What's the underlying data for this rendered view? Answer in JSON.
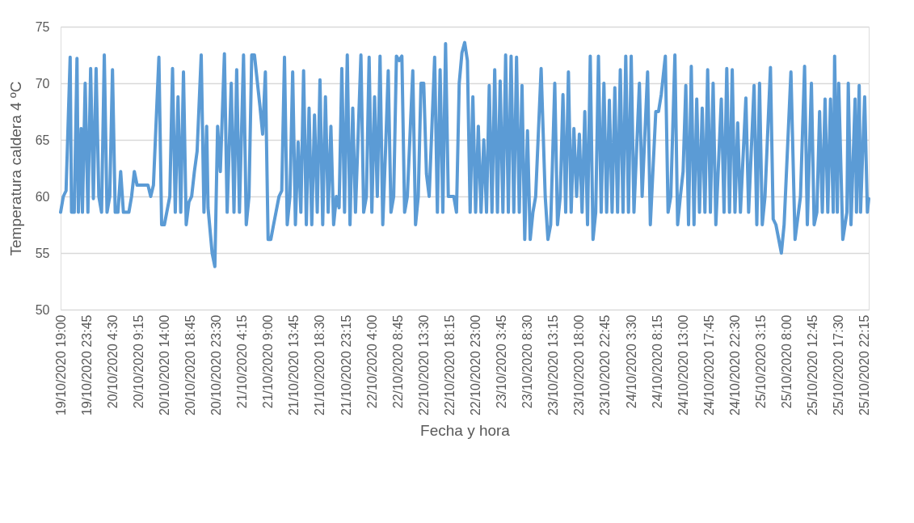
{
  "chart_data": {
    "type": "line",
    "xlabel": "Fecha y hora",
    "ylabel": "Temperatura caldera 4 ºC",
    "ylim": [
      50,
      75
    ],
    "yticks": [
      50,
      55,
      60,
      65,
      70,
      75
    ],
    "grid": "y",
    "marker": "none",
    "line_style": "solid",
    "xlim": [
      "2020-10-19T19:00",
      "2020-10-25T23:00"
    ],
    "xticks": [
      {
        "value": "2020-10-19T19:00",
        "label": "19/10/2020 19:00"
      },
      {
        "value": "2020-10-19T23:45",
        "label": "19/10/2020 23:45"
      },
      {
        "value": "2020-10-20T04:30",
        "label": "20/10/2020 4:30"
      },
      {
        "value": "2020-10-20T09:15",
        "label": "20/10/2020 9:15"
      },
      {
        "value": "2020-10-20T14:00",
        "label": "20/10/2020 14:00"
      },
      {
        "value": "2020-10-20T18:45",
        "label": "20/10/2020 18:45"
      },
      {
        "value": "2020-10-20T23:30",
        "label": "20/10/2020 23:30"
      },
      {
        "value": "2020-10-21T04:15",
        "label": "21/10/2020 4:15"
      },
      {
        "value": "2020-10-21T09:00",
        "label": "21/10/2020 9:00"
      },
      {
        "value": "2020-10-21T13:45",
        "label": "21/10/2020 13:45"
      },
      {
        "value": "2020-10-21T18:30",
        "label": "21/10/2020 18:30"
      },
      {
        "value": "2020-10-21T23:15",
        "label": "21/10/2020 23:15"
      },
      {
        "value": "2020-10-22T04:00",
        "label": "22/10/2020 4:00"
      },
      {
        "value": "2020-10-22T08:45",
        "label": "22/10/2020 8:45"
      },
      {
        "value": "2020-10-22T13:30",
        "label": "22/10/2020 13:30"
      },
      {
        "value": "2020-10-22T18:15",
        "label": "22/10/2020 18:15"
      },
      {
        "value": "2020-10-22T23:00",
        "label": "22/10/2020 23:00"
      },
      {
        "value": "2020-10-23T03:45",
        "label": "23/10/2020 3:45"
      },
      {
        "value": "2020-10-23T08:30",
        "label": "23/10/2020 8:30"
      },
      {
        "value": "2020-10-23T13:15",
        "label": "23/10/2020 13:15"
      },
      {
        "value": "2020-10-23T18:00",
        "label": "23/10/2020 18:00"
      },
      {
        "value": "2020-10-23T22:45",
        "label": "23/10/2020 22:45"
      },
      {
        "value": "2020-10-24T03:30",
        "label": "24/10/2020 3:30"
      },
      {
        "value": "2020-10-24T08:15",
        "label": "24/10/2020 8:15"
      },
      {
        "value": "2020-10-24T13:00",
        "label": "24/10/2020 13:00"
      },
      {
        "value": "2020-10-24T17:45",
        "label": "24/10/2020 17:45"
      },
      {
        "value": "2020-10-24T22:30",
        "label": "24/10/2020 22:30"
      },
      {
        "value": "2020-10-25T03:15",
        "label": "25/10/2020 3:15"
      },
      {
        "value": "2020-10-25T08:00",
        "label": "25/10/2020 8:00"
      },
      {
        "value": "2020-10-25T12:45",
        "label": "25/10/2020 12:45"
      },
      {
        "value": "2020-10-25T17:30",
        "label": "25/10/2020 17:30"
      },
      {
        "value": "2020-10-25T22:15",
        "label": "25/10/2020 22:15"
      }
    ],
    "series": [
      {
        "color": "#5b9bd5",
        "x": [
          "2020-10-19T19:00",
          "2020-10-19T19:30",
          "2020-10-19T20:00",
          "2020-10-19T20:45",
          "2020-10-19T21:00",
          "2020-10-19T21:30",
          "2020-10-19T22:00",
          "2020-10-19T22:15",
          "2020-10-19T22:45",
          "2020-10-19T23:00",
          "2020-10-19T23:30",
          "2020-10-20T00:00",
          "2020-10-20T00:30",
          "2020-10-20T01:00",
          "2020-10-20T01:30",
          "2020-10-20T02:00",
          "2020-10-20T02:30",
          "2020-10-20T03:00",
          "2020-10-20T03:30",
          "2020-10-20T04:00",
          "2020-10-20T04:30",
          "2020-10-20T05:00",
          "2020-10-20T05:30",
          "2020-10-20T06:00",
          "2020-10-20T06:30",
          "2020-10-20T07:30",
          "2020-10-20T08:00",
          "2020-10-20T08:30",
          "2020-10-20T09:00",
          "2020-10-20T11:00",
          "2020-10-20T11:30",
          "2020-10-20T12:00",
          "2020-10-20T13:00",
          "2020-10-20T13:30",
          "2020-10-20T14:00",
          "2020-10-20T15:00",
          "2020-10-20T15:30",
          "2020-10-20T16:00",
          "2020-10-20T16:30",
          "2020-10-20T17:00",
          "2020-10-20T17:30",
          "2020-10-20T18:00",
          "2020-10-20T18:30",
          "2020-10-20T19:00",
          "2020-10-20T19:30",
          "2020-10-20T20:00",
          "2020-10-20T20:45",
          "2020-10-20T21:15",
          "2020-10-20T21:45",
          "2020-10-20T22:00",
          "2020-10-20T22:45",
          "2020-10-20T23:15",
          "2020-10-20T23:45",
          "2020-10-21T00:15",
          "2020-10-21T01:00",
          "2020-10-21T01:30",
          "2020-10-21T02:15",
          "2020-10-21T02:45",
          "2020-10-21T03:15",
          "2020-10-21T03:45",
          "2020-10-21T04:30",
          "2020-10-21T05:00",
          "2020-10-21T05:30",
          "2020-10-21T06:00",
          "2020-10-21T06:30",
          "2020-10-21T07:30",
          "2020-10-21T08:00",
          "2020-10-21T08:30",
          "2020-10-21T09:00",
          "2020-10-21T09:30",
          "2020-10-21T10:00",
          "2020-10-21T11:00",
          "2020-10-21T11:30",
          "2020-10-21T12:00",
          "2020-10-21T12:30",
          "2020-10-21T13:00",
          "2020-10-21T13:30",
          "2020-10-21T14:00",
          "2020-10-21T14:30",
          "2020-10-21T15:00",
          "2020-10-21T15:30",
          "2020-10-21T16:00",
          "2020-10-21T16:30",
          "2020-10-21T17:00",
          "2020-10-21T17:30",
          "2020-10-21T18:00",
          "2020-10-21T18:30",
          "2020-10-21T19:00",
          "2020-10-21T19:30",
          "2020-10-21T20:00",
          "2020-10-21T20:30",
          "2020-10-21T21:00",
          "2020-10-21T21:30",
          "2020-10-21T22:00",
          "2020-10-21T22:30",
          "2020-10-21T23:00",
          "2020-10-21T23:30",
          "2020-10-22T00:00",
          "2020-10-22T00:30",
          "2020-10-22T01:00",
          "2020-10-22T02:00",
          "2020-10-22T02:30",
          "2020-10-22T03:00",
          "2020-10-22T03:30",
          "2020-10-22T04:00",
          "2020-10-22T04:30",
          "2020-10-22T05:00",
          "2020-10-22T05:30",
          "2020-10-22T06:00",
          "2020-10-22T06:30",
          "2020-10-22T07:00",
          "2020-10-22T07:30",
          "2020-10-22T08:00",
          "2020-10-22T08:30",
          "2020-10-22T09:00",
          "2020-10-22T09:30",
          "2020-10-22T10:00",
          "2020-10-22T10:30",
          "2020-10-22T11:30",
          "2020-10-22T12:00",
          "2020-10-22T12:30",
          "2020-10-22T13:00",
          "2020-10-22T13:30",
          "2020-10-22T14:00",
          "2020-10-22T14:30",
          "2020-10-22T15:30",
          "2020-10-22T16:00",
          "2020-10-22T16:30",
          "2020-10-22T17:00",
          "2020-10-22T17:30",
          "2020-10-22T18:00",
          "2020-10-22T19:00",
          "2020-10-22T19:30",
          "2020-10-22T20:00",
          "2020-10-22T20:30",
          "2020-10-22T21:00",
          "2020-10-22T21:30",
          "2020-10-22T22:00",
          "2020-10-22T22:30",
          "2020-10-22T23:00",
          "2020-10-22T23:30",
          "2020-10-23T00:00",
          "2020-10-23T00:30",
          "2020-10-23T01:00",
          "2020-10-23T01:30",
          "2020-10-23T02:00",
          "2020-10-23T02:30",
          "2020-10-23T03:00",
          "2020-10-23T03:30",
          "2020-10-23T04:00",
          "2020-10-23T04:30",
          "2020-10-23T05:00",
          "2020-10-23T05:30",
          "2020-10-23T06:00",
          "2020-10-23T06:30",
          "2020-10-23T07:00",
          "2020-10-23T07:30",
          "2020-10-23T08:00",
          "2020-10-23T08:30",
          "2020-10-23T09:00",
          "2020-10-23T09:30",
          "2020-10-23T10:00",
          "2020-10-23T11:00",
          "2020-10-23T11:45",
          "2020-10-23T12:15",
          "2020-10-23T12:45",
          "2020-10-23T13:30",
          "2020-10-23T14:00",
          "2020-10-23T14:30",
          "2020-10-23T15:00",
          "2020-10-23T15:30",
          "2020-10-23T16:00",
          "2020-10-23T16:30",
          "2020-10-23T17:00",
          "2020-10-23T17:30",
          "2020-10-23T18:00",
          "2020-10-23T18:30",
          "2020-10-23T19:00",
          "2020-10-23T19:30",
          "2020-10-23T20:00",
          "2020-10-23T20:30",
          "2020-10-23T21:00",
          "2020-10-23T21:30",
          "2020-10-23T22:00",
          "2020-10-23T22:30",
          "2020-10-23T23:00",
          "2020-10-23T23:30",
          "2020-10-24T00:00",
          "2020-10-24T00:30",
          "2020-10-24T01:00",
          "2020-10-24T01:30",
          "2020-10-24T02:00",
          "2020-10-24T02:30",
          "2020-10-24T03:00",
          "2020-10-24T03:30",
          "2020-10-24T04:00",
          "2020-10-24T05:00",
          "2020-10-24T05:30",
          "2020-10-24T06:30",
          "2020-10-24T07:00",
          "2020-10-24T08:00",
          "2020-10-24T08:30",
          "2020-10-24T09:00",
          "2020-10-24T09:45",
          "2020-10-24T10:15",
          "2020-10-24T10:45",
          "2020-10-24T11:30",
          "2020-10-24T12:00",
          "2020-10-24T12:30",
          "2020-10-24T13:00",
          "2020-10-24T13:30",
          "2020-10-24T14:00",
          "2020-10-24T14:30",
          "2020-10-24T15:00",
          "2020-10-24T15:30",
          "2020-10-24T16:00",
          "2020-10-24T16:30",
          "2020-10-24T17:00",
          "2020-10-24T17:30",
          "2020-10-24T18:00",
          "2020-10-24T18:30",
          "2020-10-24T19:00",
          "2020-10-24T20:00",
          "2020-10-24T20:30",
          "2020-10-24T21:00",
          "2020-10-24T21:30",
          "2020-10-24T22:00",
          "2020-10-24T22:30",
          "2020-10-24T23:00",
          "2020-10-24T23:30",
          "2020-10-25T00:30",
          "2020-10-25T01:00",
          "2020-10-25T02:00",
          "2020-10-25T02:30",
          "2020-10-25T03:00",
          "2020-10-25T03:30",
          "2020-10-25T04:00",
          "2020-10-25T05:00",
          "2020-10-25T05:30",
          "2020-10-25T06:00",
          "2020-10-25T07:00",
          "2020-10-25T07:30",
          "2020-10-25T08:45",
          "2020-10-25T09:30",
          "2020-10-25T10:30",
          "2020-10-25T11:15",
          "2020-10-25T11:45",
          "2020-10-25T12:30",
          "2020-10-25T13:00",
          "2020-10-25T13:30",
          "2020-10-25T14:00",
          "2020-10-25T14:30",
          "2020-10-25T15:00",
          "2020-10-25T15:30",
          "2020-10-25T16:00",
          "2020-10-25T16:30",
          "2020-10-25T16:45",
          "2020-10-25T17:15",
          "2020-10-25T17:30",
          "2020-10-25T18:15",
          "2020-10-25T19:00",
          "2020-10-25T19:15",
          "2020-10-25T19:45",
          "2020-10-25T20:30",
          "2020-10-25T20:45",
          "2020-10-25T21:15",
          "2020-10-25T21:30",
          "2020-10-25T22:15",
          "2020-10-25T22:45",
          "2020-10-25T23:00"
        ],
        "values": [
          58.6,
          60,
          60.5,
          72.3,
          58.6,
          58.6,
          72.2,
          58.6,
          66,
          58.6,
          70,
          58.6,
          71.3,
          59.8,
          71.3,
          60,
          58.6,
          72.5,
          58.6,
          60,
          71.2,
          58.6,
          58.6,
          62.2,
          58.6,
          58.6,
          60,
          62.2,
          61,
          61,
          60,
          61,
          72.3,
          57.5,
          57.5,
          60,
          71.3,
          58.6,
          68.8,
          58.6,
          71,
          57.5,
          59.5,
          60,
          62.2,
          64,
          72.5,
          58.6,
          66.2,
          59,
          55,
          53.8,
          66.2,
          62.2,
          72.6,
          58.6,
          70,
          58.6,
          71.2,
          58.6,
          72.5,
          57.5,
          60,
          72.5,
          72.5,
          68,
          65.5,
          71,
          56.2,
          56.2,
          57.5,
          60,
          60.5,
          72.3,
          57.5,
          60,
          71,
          57.5,
          64.8,
          58.6,
          71.1,
          57.5,
          67.8,
          57.5,
          67.2,
          58.6,
          70.3,
          57.5,
          68.8,
          58.6,
          66.2,
          57.5,
          60,
          59,
          71.3,
          58.6,
          72.5,
          57.5,
          67.8,
          58.6,
          72.5,
          58.6,
          60,
          72.3,
          58.6,
          68.8,
          60,
          72.4,
          57.5,
          64,
          71.1,
          58.6,
          60,
          72.4,
          72,
          72.4,
          58.6,
          60,
          71.1,
          57.5,
          60,
          70,
          70,
          62,
          60,
          72.3,
          58.6,
          71.2,
          58.6,
          73.5,
          60,
          60,
          58.6,
          70,
          72.7,
          73.6,
          72,
          58.6,
          68.8,
          58.6,
          66.2,
          58.6,
          65,
          58.6,
          69.8,
          58.6,
          71.2,
          58.6,
          70.2,
          58.6,
          72.5,
          58.6,
          72.4,
          58.6,
          72.3,
          58.6,
          69.8,
          56.2,
          65.8,
          56.2,
          58.6,
          60,
          71.3,
          60,
          56.2,
          57.5,
          70,
          57.5,
          60,
          69,
          58.6,
          71,
          58.6,
          66,
          60,
          65.5,
          58.6,
          67.5,
          57.5,
          72.4,
          56.2,
          58.6,
          72.4,
          58.6,
          70,
          58.6,
          68.5,
          58.6,
          69.6,
          58.6,
          71.2,
          58.6,
          72.4,
          58.6,
          72.4,
          58.6,
          70,
          60,
          71,
          57.5,
          67.5,
          67.5,
          69,
          72.4,
          58.6,
          60,
          72.5,
          57.5,
          60,
          62.2,
          69.8,
          57.5,
          71.5,
          57.5,
          68.6,
          58.6,
          67.8,
          58.6,
          71.2,
          58.6,
          70,
          57.5,
          68.6,
          58.6,
          71.3,
          58.6,
          71.2,
          58.6,
          66.5,
          58.6,
          68.7,
          58.6,
          69.8,
          57.5,
          70,
          57.5,
          60,
          71.4,
          58,
          57.5,
          55,
          57.5,
          71,
          56.2,
          60,
          71.5,
          57.5,
          70,
          57.5,
          58.6,
          67.5,
          58.6,
          68.6,
          58.6,
          68.6,
          58.6,
          72.4,
          58.6,
          70,
          56.2,
          58.6,
          70,
          57.5,
          68.6,
          58.6,
          69.8,
          58.6,
          68.8,
          58.6,
          59.8
        ]
      }
    ]
  }
}
